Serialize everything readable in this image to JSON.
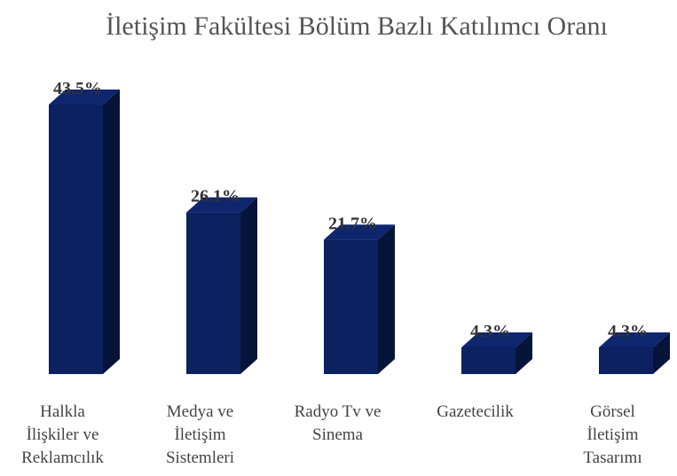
{
  "chart_data": {
    "type": "bar3d",
    "title": "İletişim Fakültesi Bölüm Bazlı Katılımcı Oranı",
    "categories": [
      "Halkla\nİlişkiler ve\nReklamcılık",
      "Medya ve\nİletişim\nSistemleri",
      "Radyo Tv ve\nSinema",
      "Gazetecilik",
      "Görsel\nİletişim\nTasarımı"
    ],
    "values": [
      43.5,
      26.1,
      21.7,
      4.3,
      4.3
    ],
    "value_labels": [
      "43.5%",
      "26.1%",
      "21.7%",
      "4.3%",
      "4.3%"
    ],
    "color": "#0b2160"
  }
}
